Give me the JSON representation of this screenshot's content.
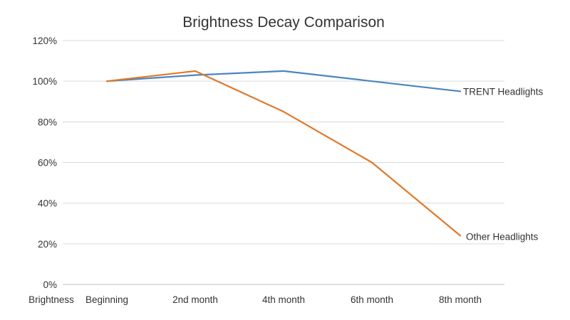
{
  "chart_data": {
    "type": "line",
    "title": "Brightness Decay Comparison",
    "xlabel": "Brightness",
    "ylabel": "",
    "categories": [
      "Beginning",
      "2nd month",
      "4th month",
      "6th month",
      "8th month"
    ],
    "ylim": [
      0,
      120
    ],
    "y_ticks": [
      0,
      20,
      40,
      60,
      80,
      100,
      120
    ],
    "y_tick_suffix": "%",
    "grid": true,
    "legend": "none (series labeled at line ends)",
    "series": [
      {
        "name": "TRENT Headlights",
        "values": [
          100,
          103,
          105,
          100,
          95
        ],
        "color": "#4a86bf"
      },
      {
        "name": "Other Headlights",
        "values": [
          100,
          105,
          85,
          60,
          24
        ],
        "color": "#e07828"
      }
    ]
  }
}
